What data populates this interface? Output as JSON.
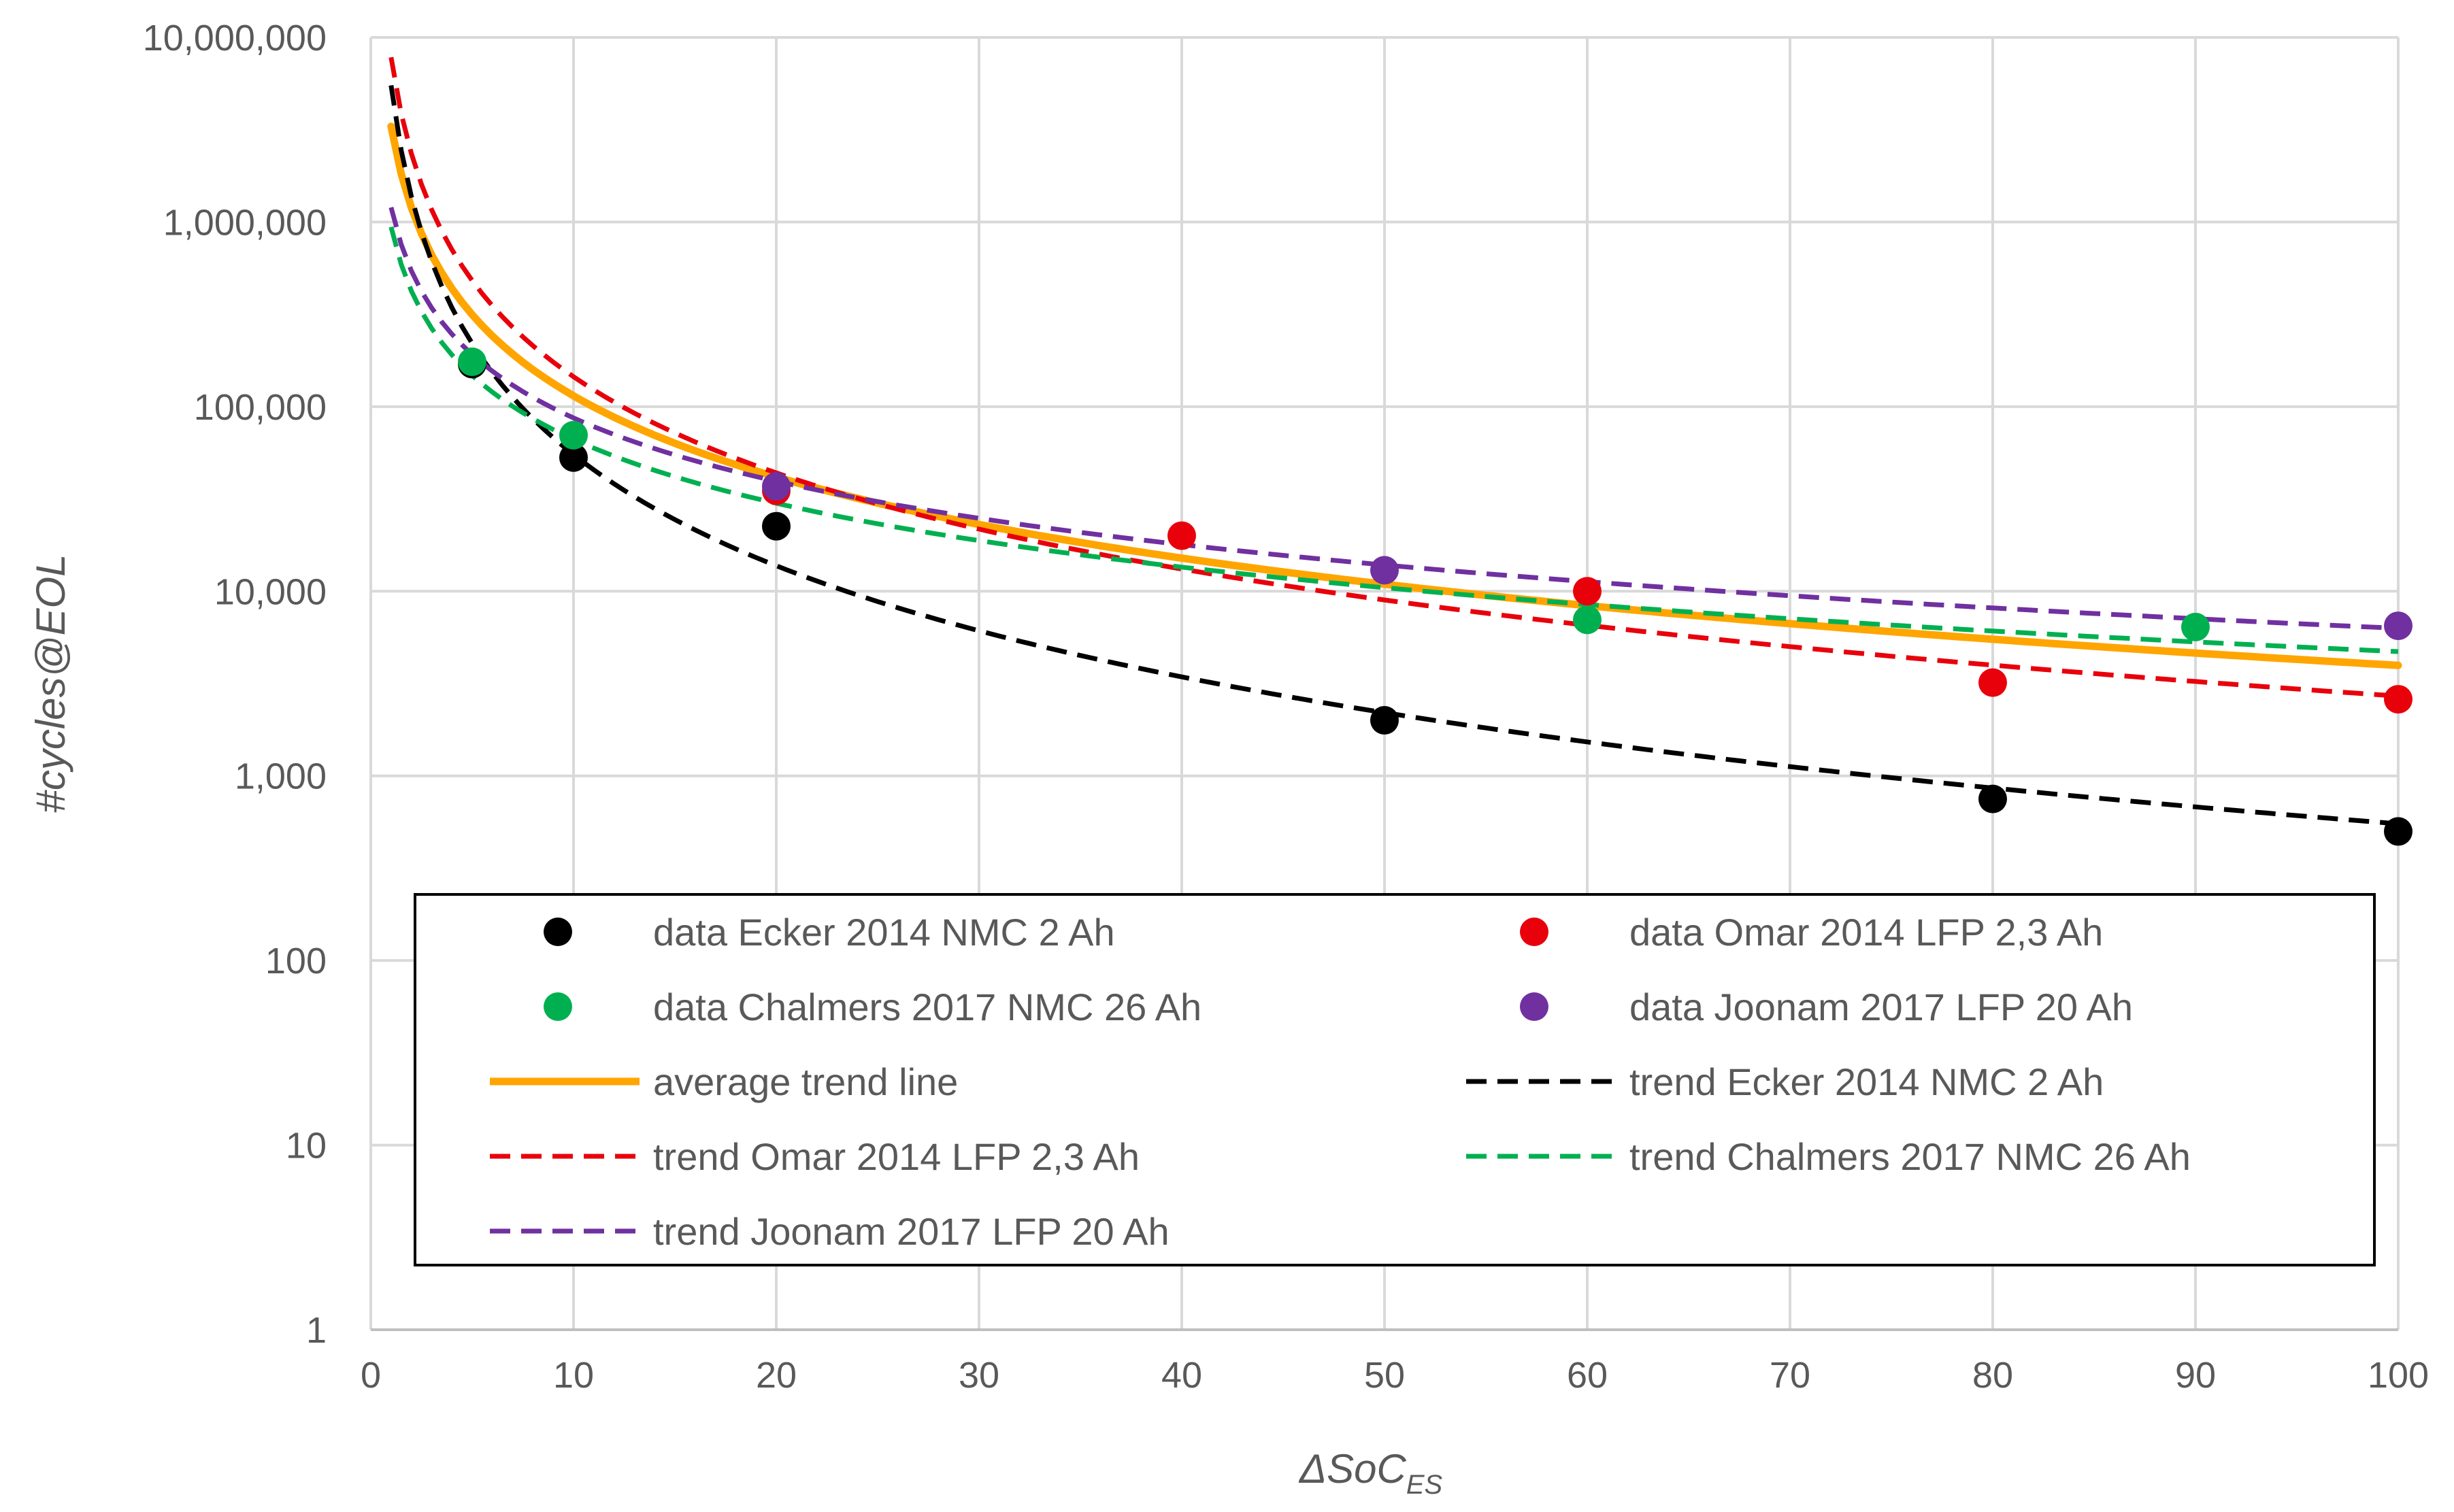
{
  "chart_data": {
    "type": "scatter",
    "xlabel": "ΔSoC",
    "xlabel_sub": "ES",
    "ylabel": "#cycles@EOL",
    "xscale": "linear",
    "yscale": "log",
    "xlim": [
      0,
      100
    ],
    "ylim": [
      1,
      10000000
    ],
    "x_ticks": [
      0,
      10,
      20,
      30,
      40,
      50,
      60,
      70,
      80,
      90,
      100
    ],
    "y_ticks": [
      1,
      10,
      100,
      1000,
      10000,
      100000,
      1000000,
      10000000
    ],
    "y_tick_labels": [
      "1",
      "10",
      "100",
      "1,000",
      "10,000",
      "100,000",
      "1,000,000",
      "10,000,000"
    ],
    "grid": true,
    "legend_position": "lower-center",
    "data_series": [
      {
        "name": "data Ecker 2014 NMC 2 Ah",
        "color": "#000000",
        "points": [
          [
            5,
            170000
          ],
          [
            10,
            53000
          ],
          [
            20,
            22500
          ],
          [
            50,
            2000
          ],
          [
            80,
            750
          ],
          [
            100,
            500
          ]
        ]
      },
      {
        "name": "data Omar 2014 LFP 2,3 Ah",
        "color": "#e8000b",
        "points": [
          [
            20,
            35000
          ],
          [
            40,
            20000
          ],
          [
            60,
            10000
          ],
          [
            80,
            3200
          ],
          [
            100,
            2600
          ]
        ]
      },
      {
        "name": "data Chalmers 2017 NMC 26 Ah",
        "color": "#00b050",
        "points": [
          [
            5,
            175000
          ],
          [
            10,
            70000
          ],
          [
            60,
            7000
          ],
          [
            90,
            6400
          ]
        ]
      },
      {
        "name": "data Joonam 2017 LFP 20 Ah",
        "color": "#7030a0",
        "points": [
          [
            20,
            37000
          ],
          [
            50,
            13000
          ],
          [
            100,
            6500
          ]
        ]
      }
    ],
    "trend_series": [
      {
        "name": "average trend line",
        "color": "#ffa500",
        "style": "solid",
        "a": 3300000,
        "b": 1.46
      },
      {
        "name": "trend Ecker 2014 NMC 2 Ah",
        "color": "#000000",
        "style": "dashed",
        "a": 5500000,
        "b": 2.0
      },
      {
        "name": "trend Omar 2014 LFP 2,3 Ah",
        "color": "#e8000b",
        "style": "dashed",
        "a": 7800000,
        "b": 1.73
      },
      {
        "name": "trend Chalmers 2017 NMC 26 Ah",
        "color": "#00b050",
        "style": "dashed",
        "a": 940000,
        "b": 1.15
      },
      {
        "name": "trend Joonam 2017 LFP 20 Ah",
        "color": "#7030a0",
        "style": "dashed",
        "a": 1200000,
        "b": 1.14
      }
    ]
  }
}
